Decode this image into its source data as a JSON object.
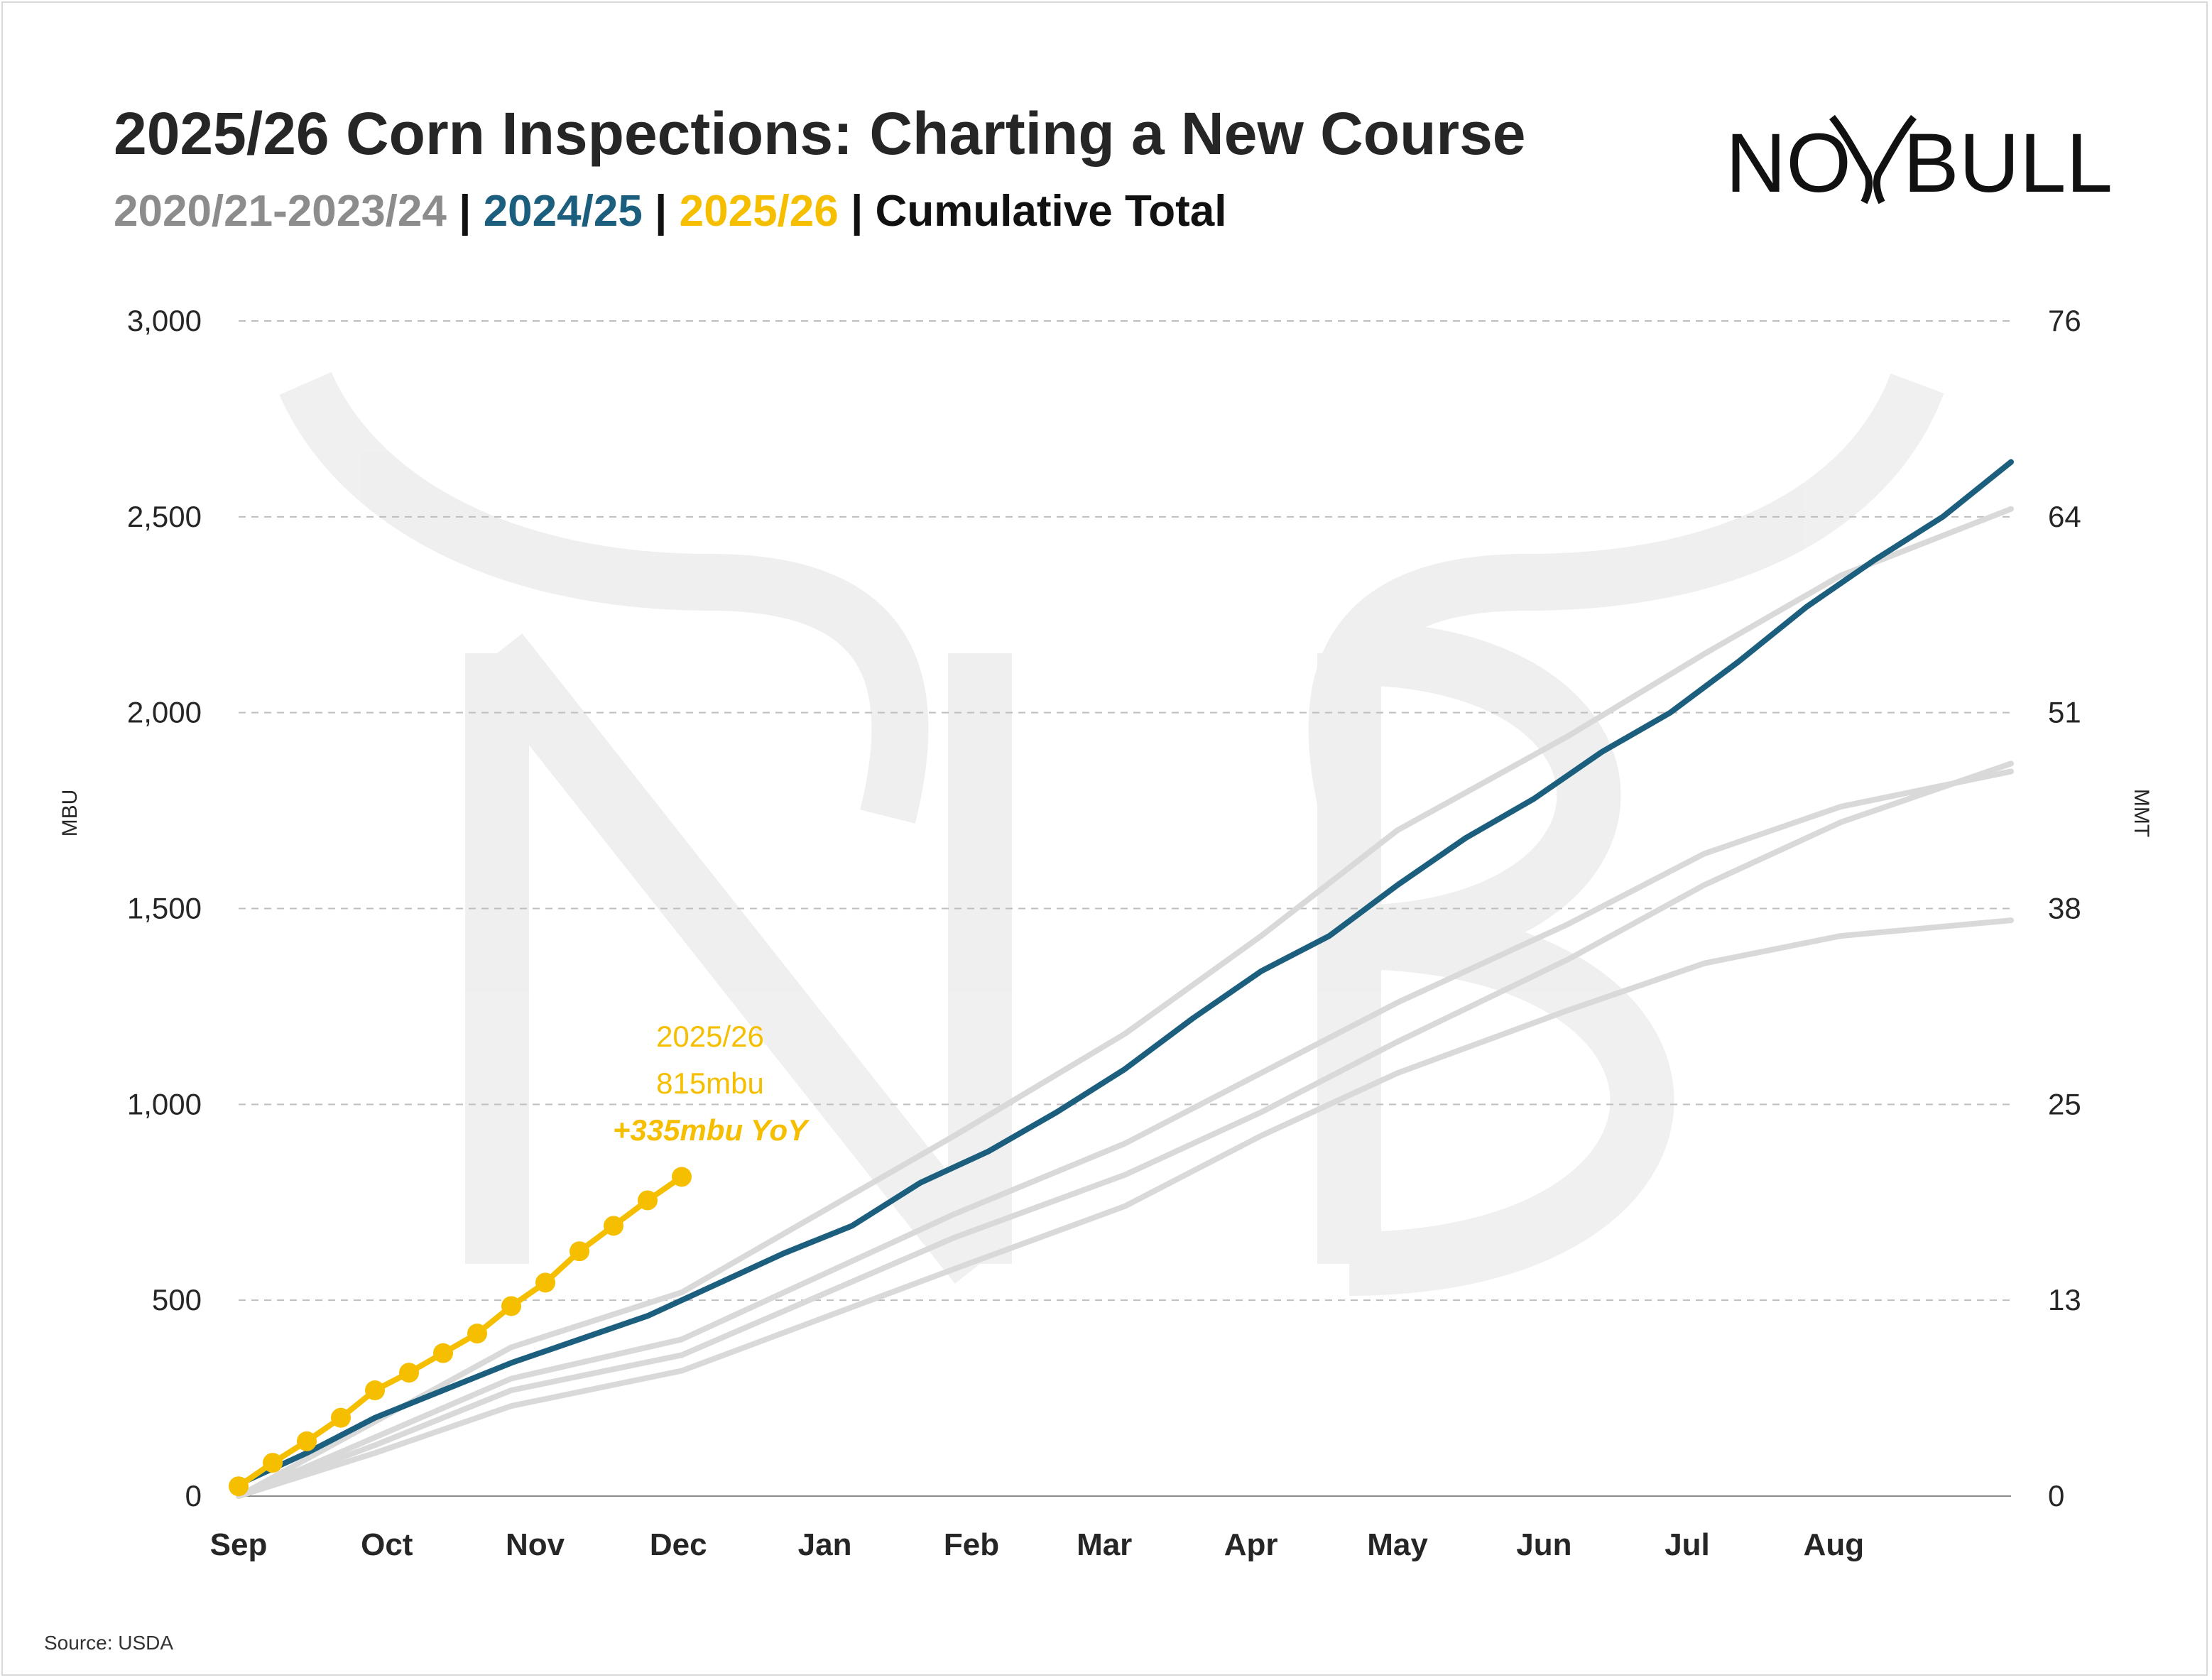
{
  "header": {
    "title": "2025/26 Corn Inspections: Charting a New Course",
    "legend_parts": [
      {
        "text": "2020/21-2023/24",
        "color": "#8c8c8c"
      },
      {
        "text": " | ",
        "color": "#111111"
      },
      {
        "text": "2024/25",
        "color": "#1b5e7e"
      },
      {
        "text": " | ",
        "color": "#111111"
      },
      {
        "text": "2025/26",
        "color": "#f5bf00"
      },
      {
        "text": " | Cumulative Total",
        "color": "#111111"
      }
    ]
  },
  "logo": {
    "text": "NO BULL",
    "icon": "bull-horns-logo",
    "left": "NO",
    "right": "BULL"
  },
  "source": "Source: USDA",
  "chart_data": {
    "type": "line",
    "ylabel": "MBU",
    "y2label": "MMT",
    "ylim": [
      0,
      3000
    ],
    "y_ticks": [
      0,
      500,
      1000,
      1500,
      2000,
      2500,
      3000
    ],
    "y_tick_labels": [
      "0",
      "500",
      "1,000",
      "1,500",
      "2,000",
      "2,500",
      "3,000"
    ],
    "y2_tick_labels": [
      "0",
      "13",
      "25",
      "38",
      "51",
      "64",
      "76"
    ],
    "x_ticks": [
      "Sep",
      "Oct",
      "Nov",
      "Dec",
      "Jan",
      "Feb",
      "Mar",
      "Apr",
      "May",
      "Jun",
      "Jul",
      "Aug"
    ],
    "xlim_weeks": [
      0,
      52
    ],
    "grid": "horizontal dashed",
    "colors": {
      "history": "#d9d9d9",
      "prior": "#1b5e7e",
      "current": "#f5bf00",
      "grid": "#bfbfbf"
    },
    "series": [
      {
        "name": "2020/21-2023/24",
        "role": "history",
        "x": [
          0,
          4,
          8,
          13,
          17,
          21,
          26,
          30,
          34,
          39,
          43,
          47,
          52
        ],
        "values": [
          0,
          150,
          300,
          400,
          560,
          720,
          900,
          1080,
          1260,
          1460,
          1640,
          1760,
          1850
        ]
      },
      {
        "name": "2020/21-2023/24",
        "role": "history",
        "x": [
          0,
          4,
          8,
          13,
          17,
          21,
          26,
          30,
          34,
          39,
          43,
          47,
          52
        ],
        "values": [
          0,
          130,
          270,
          360,
          510,
          660,
          820,
          980,
          1160,
          1370,
          1560,
          1720,
          1870
        ]
      },
      {
        "name": "2020/21-2023/24",
        "role": "history",
        "x": [
          0,
          4,
          8,
          13,
          17,
          21,
          26,
          30,
          34,
          39,
          43,
          47,
          52
        ],
        "values": [
          0,
          190,
          380,
          520,
          720,
          920,
          1180,
          1430,
          1700,
          1940,
          2150,
          2350,
          2520
        ]
      },
      {
        "name": "2020/21-2023/24",
        "role": "history",
        "x": [
          0,
          4,
          8,
          13,
          17,
          21,
          26,
          30,
          34,
          39,
          43,
          47,
          52
        ],
        "values": [
          0,
          110,
          230,
          320,
          450,
          580,
          740,
          920,
          1080,
          1240,
          1360,
          1430,
          1470
        ]
      },
      {
        "name": "2024/25",
        "role": "prior",
        "x": [
          0,
          2,
          4,
          6,
          8,
          10,
          12,
          14,
          16,
          18,
          20,
          22,
          24,
          26,
          28,
          30,
          32,
          34,
          36,
          38,
          40,
          42,
          44,
          46,
          48,
          50,
          52
        ],
        "values": [
          30,
          110,
          200,
          270,
          340,
          400,
          460,
          540,
          620,
          690,
          800,
          880,
          980,
          1090,
          1220,
          1340,
          1430,
          1560,
          1680,
          1780,
          1900,
          2000,
          2130,
          2270,
          2390,
          2500,
          2640
        ]
      },
      {
        "name": "2025/26",
        "role": "current",
        "x": [
          0,
          1,
          2,
          3,
          4,
          5,
          6,
          7,
          8,
          9,
          10,
          11,
          12,
          13
        ],
        "values": [
          25,
          85,
          140,
          200,
          270,
          315,
          365,
          415,
          485,
          545,
          625,
          690,
          755,
          815
        ]
      }
    ],
    "annotation": {
      "lines": [
        "2025/26",
        "815mbu",
        "+335mbu YoY"
      ],
      "color": "#f5bf00"
    }
  }
}
